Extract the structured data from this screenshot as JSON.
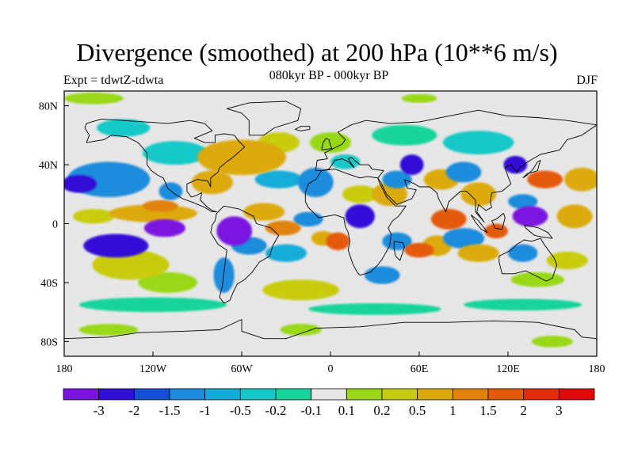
{
  "title": "Divergence (smoothed) at 200 hPa (10**6 m/s)",
  "experiment": "Expt = tdwtZ-tdwta",
  "period": "080kyr BP - 000kyr BP",
  "season": "DJF",
  "map": {
    "projection": "cylindrical-equidistant",
    "lon_range": [
      -180,
      180
    ],
    "lat_range": [
      -90,
      90
    ],
    "x_ticks": [
      {
        "value": -180,
        "label": "180"
      },
      {
        "value": -120,
        "label": "120W"
      },
      {
        "value": -60,
        "label": "60W"
      },
      {
        "value": 0,
        "label": "0"
      },
      {
        "value": 60,
        "label": "60E"
      },
      {
        "value": 120,
        "label": "120E"
      },
      {
        "value": 180,
        "label": "180"
      }
    ],
    "y_ticks": [
      {
        "value": 80,
        "label": "80N"
      },
      {
        "value": 40,
        "label": "40N"
      },
      {
        "value": 0,
        "label": "0"
      },
      {
        "value": -40,
        "label": "40S"
      },
      {
        "value": -80,
        "label": "80S"
      }
    ],
    "background_color": "#e6e6e6",
    "coast_color": "#000000"
  },
  "colorbar": {
    "labels": [
      "-3",
      "-2",
      "-1.5",
      "-1",
      "-0.5",
      "-0.2",
      "-0.1",
      "0.1",
      "0.2",
      "0.5",
      "1",
      "1.5",
      "2",
      "3"
    ],
    "colors": [
      "#7a12e0",
      "#3010d8",
      "#1450d8",
      "#1e8cdc",
      "#12acd8",
      "#12c8c8",
      "#16d49a",
      "#e6e6e6",
      "#98d816",
      "#c8cc10",
      "#dcaa0a",
      "#e0820a",
      "#e45a0a",
      "#e42c0c",
      "#e00808"
    ]
  },
  "blobs": [
    {
      "lon": -112,
      "lat": -3,
      "rx": 14,
      "ry": 6,
      "v": -3
    },
    {
      "lon": -145,
      "lat": -15,
      "rx": 22,
      "ry": 8,
      "v": -2
    },
    {
      "lon": -170,
      "lat": 27,
      "rx": 12,
      "ry": 6,
      "v": -2
    },
    {
      "lon": -150,
      "lat": 30,
      "rx": 28,
      "ry": 12,
      "v": -1
    },
    {
      "lon": -108,
      "lat": 22,
      "rx": 8,
      "ry": 6,
      "v": -1
    },
    {
      "lon": -105,
      "lat": 48,
      "rx": 22,
      "ry": 8,
      "v": -0.2
    },
    {
      "lon": -140,
      "lat": 65,
      "rx": 18,
      "ry": 6,
      "v": -0.2
    },
    {
      "lon": -60,
      "lat": 45,
      "rx": 30,
      "ry": 12,
      "v": 1
    },
    {
      "lon": -35,
      "lat": 55,
      "rx": 14,
      "ry": 7,
      "v": 0.5
    },
    {
      "lon": -80,
      "lat": 28,
      "rx": 14,
      "ry": 8,
      "v": 1
    },
    {
      "lon": -120,
      "lat": 7,
      "rx": 30,
      "ry": 6,
      "v": 1
    },
    {
      "lon": -115,
      "lat": 12,
      "rx": 12,
      "ry": 4,
      "v": 1.5
    },
    {
      "lon": -160,
      "lat": 5,
      "rx": 14,
      "ry": 5,
      "v": 0.5
    },
    {
      "lon": -135,
      "lat": -28,
      "rx": 26,
      "ry": 10,
      "v": 0.5
    },
    {
      "lon": -110,
      "lat": -40,
      "rx": 20,
      "ry": 7,
      "v": 0.2
    },
    {
      "lon": -65,
      "lat": -5,
      "rx": 12,
      "ry": 10,
      "v": -3
    },
    {
      "lon": -55,
      "lat": -15,
      "rx": 12,
      "ry": 6,
      "v": -1
    },
    {
      "lon": -72,
      "lat": -35,
      "rx": 7,
      "ry": 12,
      "v": -1
    },
    {
      "lon": -45,
      "lat": 8,
      "rx": 14,
      "ry": 6,
      "v": 1
    },
    {
      "lon": -32,
      "lat": -3,
      "rx": 12,
      "ry": 5,
      "v": 1.5
    },
    {
      "lon": -30,
      "lat": -20,
      "rx": 14,
      "ry": 6,
      "v": -0.5
    },
    {
      "lon": -35,
      "lat": 30,
      "rx": 16,
      "ry": 6,
      "v": -0.5
    },
    {
      "lon": -10,
      "lat": 28,
      "rx": 12,
      "ry": 10,
      "v": -1
    },
    {
      "lon": -15,
      "lat": 3,
      "rx": 10,
      "ry": 5,
      "v": -1
    },
    {
      "lon": 5,
      "lat": -12,
      "rx": 8,
      "ry": 6,
      "v": 2
    },
    {
      "lon": -5,
      "lat": -10,
      "rx": 8,
      "ry": 5,
      "v": 1
    },
    {
      "lon": -20,
      "lat": -45,
      "rx": 26,
      "ry": 7,
      "v": 0.5
    },
    {
      "lon": 20,
      "lat": 5,
      "rx": 10,
      "ry": 8,
      "v": -2
    },
    {
      "lon": 20,
      "lat": 20,
      "rx": 12,
      "ry": 6,
      "v": 0.5
    },
    {
      "lon": 40,
      "lat": 20,
      "rx": 12,
      "ry": 8,
      "v": 1
    },
    {
      "lon": 45,
      "lat": 30,
      "rx": 10,
      "ry": 6,
      "v": -1
    },
    {
      "lon": 55,
      "lat": 40,
      "rx": 8,
      "ry": 7,
      "v": -2
    },
    {
      "lon": 75,
      "lat": 30,
      "rx": 12,
      "ry": 7,
      "v": 1
    },
    {
      "lon": 90,
      "lat": 35,
      "rx": 12,
      "ry": 7,
      "v": -1
    },
    {
      "lon": 100,
      "lat": 55,
      "rx": 24,
      "ry": 8,
      "v": -0.2
    },
    {
      "lon": 50,
      "lat": 60,
      "rx": 22,
      "ry": 7,
      "v": -0.1
    },
    {
      "lon": 0,
      "lat": 55,
      "rx": 14,
      "ry": 7,
      "v": 0.2
    },
    {
      "lon": 10,
      "lat": 42,
      "rx": 10,
      "ry": 5,
      "v": -0.2
    },
    {
      "lon": 80,
      "lat": 3,
      "rx": 12,
      "ry": 7,
      "v": 2
    },
    {
      "lon": 72,
      "lat": -15,
      "rx": 10,
      "ry": 7,
      "v": 1
    },
    {
      "lon": 60,
      "lat": -18,
      "rx": 10,
      "ry": 5,
      "v": 2
    },
    {
      "lon": 45,
      "lat": -12,
      "rx": 10,
      "ry": 6,
      "v": -1
    },
    {
      "lon": 35,
      "lat": -35,
      "rx": 12,
      "ry": 6,
      "v": -1
    },
    {
      "lon": 90,
      "lat": -10,
      "rx": 14,
      "ry": 7,
      "v": -1
    },
    {
      "lon": 100,
      "lat": 20,
      "rx": 12,
      "ry": 8,
      "v": 1
    },
    {
      "lon": 100,
      "lat": -20,
      "rx": 14,
      "ry": 6,
      "v": 1
    },
    {
      "lon": 112,
      "lat": -5,
      "rx": 8,
      "ry": 5,
      "v": 2
    },
    {
      "lon": 135,
      "lat": 5,
      "rx": 12,
      "ry": 7,
      "v": -3
    },
    {
      "lon": 130,
      "lat": 15,
      "rx": 10,
      "ry": 5,
      "v": -1
    },
    {
      "lon": 145,
      "lat": 30,
      "rx": 12,
      "ry": 6,
      "v": 2
    },
    {
      "lon": 170,
      "lat": 30,
      "rx": 12,
      "ry": 8,
      "v": 1
    },
    {
      "lon": 125,
      "lat": 40,
      "rx": 8,
      "ry": 6,
      "v": -2
    },
    {
      "lon": 165,
      "lat": 5,
      "rx": 12,
      "ry": 8,
      "v": 1
    },
    {
      "lon": 130,
      "lat": -20,
      "rx": 10,
      "ry": 6,
      "v": -1
    },
    {
      "lon": 160,
      "lat": -25,
      "rx": 14,
      "ry": 6,
      "v": 0.5
    },
    {
      "lon": 140,
      "lat": -38,
      "rx": 18,
      "ry": 5,
      "v": 0.2
    },
    {
      "lon": -120,
      "lat": -55,
      "rx": 50,
      "ry": 5,
      "v": -0.1
    },
    {
      "lon": 30,
      "lat": -58,
      "rx": 45,
      "ry": 4,
      "v": -0.1
    },
    {
      "lon": 130,
      "lat": -55,
      "rx": 40,
      "ry": 4,
      "v": -0.1
    },
    {
      "lon": -150,
      "lat": -72,
      "rx": 20,
      "ry": 4,
      "v": 0.2
    },
    {
      "lon": -20,
      "lat": -72,
      "rx": 14,
      "ry": 4,
      "v": 0.2
    },
    {
      "lon": 150,
      "lat": -80,
      "rx": 14,
      "ry": 4,
      "v": 0.2
    },
    {
      "lon": -160,
      "lat": 85,
      "rx": 20,
      "ry": 4,
      "v": 0.2
    },
    {
      "lon": 60,
      "lat": 85,
      "rx": 12,
      "ry": 3,
      "v": 0.2
    }
  ],
  "coastlines": [
    [
      [
        -165,
        68
      ],
      [
        -155,
        71
      ],
      [
        -140,
        70
      ],
      [
        -125,
        69
      ],
      [
        -110,
        68
      ],
      [
        -95,
        70
      ],
      [
        -85,
        68
      ],
      [
        -80,
        63
      ],
      [
        -92,
        58
      ],
      [
        -85,
        55
      ],
      [
        -78,
        55
      ],
      [
        -78,
        60
      ],
      [
        -72,
        61
      ],
      [
        -65,
        60
      ],
      [
        -62,
        56
      ],
      [
        -58,
        52
      ],
      [
        -66,
        45
      ],
      [
        -70,
        42
      ],
      [
        -75,
        38
      ],
      [
        -76,
        35
      ],
      [
        -81,
        31
      ],
      [
        -81,
        25
      ],
      [
        -83,
        29
      ],
      [
        -90,
        30
      ],
      [
        -97,
        27
      ],
      [
        -97,
        22
      ],
      [
        -94,
        18
      ],
      [
        -91,
        19
      ],
      [
        -87,
        21
      ],
      [
        -88,
        16
      ],
      [
        -83,
        11
      ],
      [
        -80,
        9
      ],
      [
        -77,
        8
      ],
      [
        -80,
        8
      ],
      [
        -85,
        11
      ],
      [
        -92,
        14
      ],
      [
        -100,
        17
      ],
      [
        -105,
        20
      ],
      [
        -110,
        24
      ],
      [
        -113,
        31
      ],
      [
        -117,
        33
      ],
      [
        -121,
        36
      ],
      [
        -124,
        40
      ],
      [
        -124,
        48
      ],
      [
        -130,
        55
      ],
      [
        -138,
        59
      ],
      [
        -148,
        60
      ],
      [
        -153,
        57
      ],
      [
        -165,
        55
      ],
      [
        -163,
        60
      ],
      [
        -166,
        65
      ],
      [
        -165,
        68
      ]
    ],
    [
      [
        -72,
        12
      ],
      [
        -62,
        10
      ],
      [
        -52,
        5
      ],
      [
        -50,
        0
      ],
      [
        -40,
        -3
      ],
      [
        -35,
        -8
      ],
      [
        -39,
        -15
      ],
      [
        -41,
        -22
      ],
      [
        -48,
        -26
      ],
      [
        -53,
        -33
      ],
      [
        -58,
        -38
      ],
      [
        -63,
        -41
      ],
      [
        -66,
        -47
      ],
      [
        -68,
        -52
      ],
      [
        -72,
        -54
      ],
      [
        -75,
        -50
      ],
      [
        -73,
        -42
      ],
      [
        -72,
        -33
      ],
      [
        -71,
        -25
      ],
      [
        -70,
        -18
      ],
      [
        -76,
        -14
      ],
      [
        -81,
        -6
      ],
      [
        -80,
        -1
      ],
      [
        -78,
        2
      ],
      [
        -77,
        7
      ],
      [
        -72,
        12
      ]
    ],
    [
      [
        -55,
        60
      ],
      [
        -45,
        60
      ],
      [
        -38,
        65
      ],
      [
        -22,
        70
      ],
      [
        -20,
        78
      ],
      [
        -30,
        83
      ],
      [
        -55,
        82
      ],
      [
        -70,
        78
      ],
      [
        -60,
        75
      ],
      [
        -55,
        70
      ],
      [
        -55,
        60
      ]
    ],
    [
      [
        -10,
        36
      ],
      [
        -9,
        43
      ],
      [
        -2,
        44
      ],
      [
        -4,
        48
      ],
      [
        2,
        51
      ],
      [
        8,
        54
      ],
      [
        10,
        57
      ],
      [
        5,
        62
      ],
      [
        14,
        67
      ],
      [
        24,
        70
      ],
      [
        40,
        68
      ],
      [
        60,
        69
      ],
      [
        80,
        73
      ],
      [
        100,
        77
      ],
      [
        120,
        73
      ],
      [
        140,
        72
      ],
      [
        160,
        70
      ],
      [
        180,
        67
      ],
      [
        170,
        60
      ],
      [
        160,
        57
      ],
      [
        155,
        50
      ],
      [
        142,
        47
      ],
      [
        135,
        43
      ],
      [
        128,
        38
      ],
      [
        126,
        35
      ],
      [
        122,
        40
      ],
      [
        118,
        38
      ],
      [
        120,
        32
      ],
      [
        122,
        27
      ],
      [
        116,
        22
      ],
      [
        109,
        21
      ],
      [
        108,
        15
      ],
      [
        109,
        11
      ],
      [
        105,
        9
      ],
      [
        100,
        13
      ],
      [
        99,
        8
      ],
      [
        104,
        1
      ],
      [
        98,
        8
      ],
      [
        98,
        16
      ],
      [
        92,
        22
      ],
      [
        88,
        22
      ],
      [
        80,
        15
      ],
      [
        78,
        8
      ],
      [
        73,
        17
      ],
      [
        72,
        21
      ],
      [
        67,
        25
      ],
      [
        60,
        25
      ],
      [
        57,
        27
      ],
      [
        50,
        30
      ],
      [
        52,
        24
      ],
      [
        58,
        23
      ],
      [
        55,
        17
      ],
      [
        45,
        13
      ],
      [
        38,
        20
      ],
      [
        34,
        28
      ],
      [
        32,
        31
      ],
      [
        36,
        36
      ],
      [
        28,
        37
      ],
      [
        26,
        40
      ],
      [
        20,
        40
      ],
      [
        14,
        45
      ],
      [
        12,
        44
      ],
      [
        16,
        38
      ],
      [
        12,
        42
      ],
      [
        8,
        44
      ],
      [
        3,
        43
      ],
      [
        -1,
        37
      ],
      [
        -6,
        36
      ],
      [
        -10,
        36
      ]
    ],
    [
      [
        -17,
        21
      ],
      [
        -17,
        15
      ],
      [
        -15,
        11
      ],
      [
        -8,
        4
      ],
      [
        3,
        6
      ],
      [
        9,
        4
      ],
      [
        10,
        -2
      ],
      [
        12,
        -6
      ],
      [
        13,
        -12
      ],
      [
        12,
        -18
      ],
      [
        15,
        -27
      ],
      [
        18,
        -33
      ],
      [
        20,
        -35
      ],
      [
        27,
        -33
      ],
      [
        32,
        -28
      ],
      [
        35,
        -24
      ],
      [
        40,
        -15
      ],
      [
        41,
        -7
      ],
      [
        39,
        -3
      ],
      [
        42,
        2
      ],
      [
        46,
        5
      ],
      [
        51,
        12
      ],
      [
        44,
        12
      ],
      [
        38,
        18
      ],
      [
        33,
        28
      ],
      [
        32,
        31
      ],
      [
        25,
        32
      ],
      [
        20,
        31
      ],
      [
        11,
        34
      ],
      [
        3,
        37
      ],
      [
        -6,
        36
      ],
      [
        -10,
        30
      ],
      [
        -15,
        27
      ],
      [
        -17,
        21
      ]
    ],
    [
      [
        114,
        -22
      ],
      [
        114,
        -26
      ],
      [
        116,
        -34
      ],
      [
        124,
        -34
      ],
      [
        132,
        -32
      ],
      [
        138,
        -35
      ],
      [
        146,
        -39
      ],
      [
        150,
        -37
      ],
      [
        153,
        -28
      ],
      [
        151,
        -23
      ],
      [
        145,
        -15
      ],
      [
        142,
        -10
      ],
      [
        136,
        -12
      ],
      [
        131,
        -11
      ],
      [
        126,
        -14
      ],
      [
        122,
        -18
      ],
      [
        114,
        -22
      ]
    ],
    [
      [
        -6,
        50
      ],
      [
        -5,
        55
      ],
      [
        -3,
        58
      ],
      [
        -1,
        57
      ],
      [
        0,
        53
      ],
      [
        1,
        51
      ],
      [
        -6,
        50
      ]
    ],
    [
      [
        130,
        31
      ],
      [
        133,
        34
      ],
      [
        137,
        35
      ],
      [
        140,
        36
      ],
      [
        141,
        40
      ],
      [
        142,
        43
      ],
      [
        140,
        42
      ],
      [
        137,
        37
      ],
      [
        133,
        33
      ],
      [
        130,
        31
      ]
    ],
    [
      [
        95,
        6
      ],
      [
        100,
        2
      ],
      [
        104,
        -3
      ],
      [
        106,
        -6
      ],
      [
        102,
        -4
      ],
      [
        98,
        1
      ],
      [
        95,
        6
      ]
    ],
    [
      [
        109,
        2
      ],
      [
        112,
        3
      ],
      [
        117,
        7
      ],
      [
        118,
        4
      ],
      [
        117,
        0
      ],
      [
        116,
        -4
      ],
      [
        111,
        -3
      ],
      [
        110,
        0
      ],
      [
        109,
        2
      ]
    ],
    [
      [
        131,
        -1
      ],
      [
        137,
        -2
      ],
      [
        141,
        -3
      ],
      [
        147,
        -6
      ],
      [
        150,
        -10
      ],
      [
        143,
        -9
      ],
      [
        138,
        -8
      ],
      [
        132,
        -3
      ],
      [
        131,
        -1
      ]
    ],
    [
      [
        43,
        -12
      ],
      [
        49,
        -13
      ],
      [
        50,
        -16
      ],
      [
        47,
        -25
      ],
      [
        44,
        -22
      ],
      [
        43,
        -17
      ],
      [
        43,
        -12
      ]
    ],
    [
      [
        -24,
        64
      ],
      [
        -20,
        66
      ],
      [
        -14,
        66
      ],
      [
        -14,
        64
      ],
      [
        -20,
        63
      ],
      [
        -24,
        64
      ]
    ],
    [
      [
        -180,
        -78
      ],
      [
        -150,
        -77
      ],
      [
        -130,
        -74
      ],
      [
        -100,
        -73
      ],
      [
        -75,
        -72
      ],
      [
        -60,
        -65
      ],
      [
        -60,
        -73
      ],
      [
        -45,
        -78
      ],
      [
        -30,
        -78
      ],
      [
        -10,
        -71
      ],
      [
        20,
        -70
      ],
      [
        50,
        -67
      ],
      [
        80,
        -67
      ],
      [
        110,
        -66
      ],
      [
        140,
        -67
      ],
      [
        165,
        -72
      ],
      [
        170,
        -77
      ],
      [
        180,
        -78
      ]
    ]
  ]
}
